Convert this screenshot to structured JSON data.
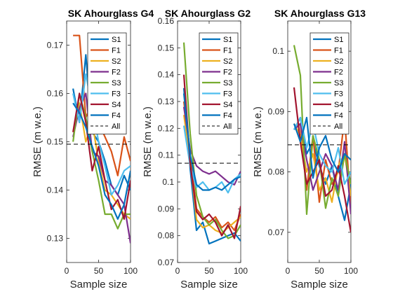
{
  "chart_data": [
    {
      "type": "line",
      "title": "SK Ahourglass G4",
      "xlabel": "Sample size",
      "ylabel": "RMSE (m w.e.)",
      "xlim": [
        0,
        100
      ],
      "ylim": [
        0.125,
        0.175
      ],
      "xticks": [
        "0",
        "50",
        "100"
      ],
      "yticks": [
        "0.13",
        "0.14",
        "0.15",
        "0.16",
        "0.17"
      ],
      "x": [
        10,
        20,
        30,
        40,
        50,
        60,
        70,
        80,
        90,
        100
      ],
      "series": [
        {
          "name": "S1",
          "color": "#0072BD",
          "values": [
            0.161,
            0.154,
            0.168,
            0.152,
            0.15,
            0.146,
            0.141,
            0.139,
            0.143,
            0.14
          ]
        },
        {
          "name": "F1",
          "color": "#D95319",
          "values": [
            0.172,
            0.172,
            0.155,
            0.158,
            0.154,
            0.151,
            0.148,
            0.143,
            0.151,
            0.146
          ]
        },
        {
          "name": "S2",
          "color": "#EDB120",
          "values": [
            0.152,
            0.158,
            0.15,
            0.154,
            0.146,
            0.14,
            0.139,
            0.137,
            0.135,
            0.134
          ]
        },
        {
          "name": "F2",
          "color": "#7E2F8E",
          "values": [
            0.151,
            0.157,
            0.16,
            0.148,
            0.147,
            0.142,
            0.141,
            0.139,
            0.137,
            0.129
          ]
        },
        {
          "name": "S3",
          "color": "#77AC30",
          "values": [
            0.15,
            0.16,
            0.155,
            0.148,
            0.142,
            0.135,
            0.135,
            0.132,
            0.135,
            0.135
          ]
        },
        {
          "name": "F3",
          "color": "#4DBEEE",
          "values": [
            0.16,
            0.154,
            0.164,
            0.157,
            0.15,
            0.145,
            0.139,
            0.141,
            0.144,
            0.145
          ]
        },
        {
          "name": "S4",
          "color": "#A2142F",
          "values": [
            0.152,
            0.16,
            0.154,
            0.144,
            0.149,
            0.142,
            0.136,
            0.138,
            0.134,
            0.142
          ]
        },
        {
          "name": "F4",
          "color": "#0072BD",
          "values": [
            0.158,
            0.156,
            0.153,
            0.149,
            0.145,
            0.139,
            0.137,
            0.134,
            0.137,
            0.144
          ]
        },
        {
          "name": "All",
          "color": "#000000",
          "dashed": true,
          "values": [
            0.1495,
            0.1495,
            0.1495,
            0.1495,
            0.1495,
            0.1495,
            0.1495,
            0.1495,
            0.1495,
            0.1495
          ]
        }
      ]
    },
    {
      "type": "line",
      "title": "SK Ahourglass G2",
      "xlabel": "Sample size",
      "ylabel": "RMSE (m w.e.)",
      "xlim": [
        0,
        100
      ],
      "ylim": [
        0.07,
        0.16
      ],
      "xticks": [
        "0",
        "50",
        "100"
      ],
      "yticks": [
        "0.07",
        "0.08",
        "0.09",
        "0.1",
        "0.11",
        "0.12",
        "0.13",
        "0.14",
        "0.15",
        "0.16"
      ],
      "x": [
        10,
        20,
        30,
        40,
        50,
        60,
        70,
        80,
        90,
        100
      ],
      "series": [
        {
          "name": "S1",
          "color": "#0072BD",
          "values": [
            0.135,
            0.105,
            0.082,
            0.085,
            0.077,
            0.078,
            0.079,
            0.08,
            0.081,
            0.078
          ]
        },
        {
          "name": "F1",
          "color": "#D95319",
          "values": [
            0.13,
            0.11,
            0.09,
            0.087,
            0.085,
            0.087,
            0.083,
            0.085,
            0.082,
            0.088
          ]
        },
        {
          "name": "S2",
          "color": "#EDB120",
          "values": [
            0.125,
            0.108,
            0.086,
            0.083,
            0.084,
            0.082,
            0.081,
            0.083,
            0.085,
            0.087
          ]
        },
        {
          "name": "F2",
          "color": "#7E2F8E",
          "values": [
            0.128,
            0.112,
            0.106,
            0.104,
            0.103,
            0.104,
            0.102,
            0.1,
            0.099,
            0.104
          ]
        },
        {
          "name": "S3",
          "color": "#77AC30",
          "values": [
            0.152,
            0.118,
            0.095,
            0.087,
            0.084,
            0.086,
            0.082,
            0.079,
            0.08,
            0.084
          ]
        },
        {
          "name": "F3",
          "color": "#4DBEEE",
          "values": [
            0.121,
            0.106,
            0.098,
            0.1,
            0.097,
            0.098,
            0.1,
            0.096,
            0.101,
            0.103
          ]
        },
        {
          "name": "S4",
          "color": "#A2142F",
          "values": [
            0.14,
            0.107,
            0.089,
            0.086,
            0.088,
            0.085,
            0.08,
            0.084,
            0.079,
            0.091
          ]
        },
        {
          "name": "F4",
          "color": "#0072BD",
          "values": [
            0.133,
            0.11,
            0.099,
            0.097,
            0.097,
            0.098,
            0.097,
            0.099,
            0.101,
            0.102
          ]
        },
        {
          "name": "All",
          "color": "#000000",
          "dashed": true,
          "values": [
            0.107,
            0.107,
            0.107,
            0.107,
            0.107,
            0.107,
            0.107,
            0.107,
            0.107,
            0.107
          ]
        }
      ]
    },
    {
      "type": "line",
      "title": "SK Ahourglass G13",
      "xlabel": "Sample size",
      "ylabel": "RMSE (m w.e.)",
      "xlim": [
        0,
        100
      ],
      "ylim": [
        0.065,
        0.105
      ],
      "xticks": [
        "0",
        "50",
        "100"
      ],
      "yticks": [
        "0.07",
        "0.08",
        "0.09",
        "0.1"
      ],
      "x": [
        10,
        20,
        30,
        40,
        50,
        60,
        70,
        80,
        90,
        100
      ],
      "series": [
        {
          "name": "S1",
          "color": "#0072BD",
          "values": [
            0.087,
            0.089,
            0.083,
            0.085,
            0.081,
            0.078,
            0.081,
            0.076,
            0.072,
            0.078
          ]
        },
        {
          "name": "F1",
          "color": "#D95319",
          "values": [
            0.087,
            0.088,
            0.077,
            0.086,
            0.075,
            0.082,
            0.078,
            0.08,
            0.089,
            0.074
          ]
        },
        {
          "name": "S2",
          "color": "#EDB120",
          "values": [
            0.088,
            0.086,
            0.08,
            0.083,
            0.077,
            0.079,
            0.075,
            0.081,
            0.083,
            0.076
          ]
        },
        {
          "name": "F2",
          "color": "#7E2F8E",
          "values": [
            0.087,
            0.088,
            0.082,
            0.077,
            0.08,
            0.083,
            0.081,
            0.077,
            0.085,
            0.073
          ]
        },
        {
          "name": "S3",
          "color": "#77AC30",
          "values": [
            0.101,
            0.096,
            0.073,
            0.086,
            0.082,
            0.074,
            0.079,
            0.076,
            0.083,
            0.078
          ]
        },
        {
          "name": "F3",
          "color": "#4DBEEE",
          "values": [
            0.087,
            0.089,
            0.084,
            0.088,
            0.083,
            0.081,
            0.08,
            0.084,
            0.078,
            0.08
          ]
        },
        {
          "name": "S4",
          "color": "#A2142F",
          "values": [
            0.094,
            0.085,
            0.078,
            0.08,
            0.082,
            0.076,
            0.077,
            0.081,
            0.076,
            0.07
          ]
        },
        {
          "name": "F4",
          "color": "#0072BD",
          "values": [
            0.088,
            0.085,
            0.089,
            0.079,
            0.084,
            0.086,
            0.082,
            0.08,
            0.083,
            0.082
          ]
        },
        {
          "name": "All",
          "color": "#000000",
          "dashed": true,
          "values": [
            0.0845,
            0.0845,
            0.0845,
            0.0845,
            0.0845,
            0.0845,
            0.0845,
            0.0845,
            0.0845,
            0.0845
          ]
        }
      ]
    }
  ]
}
